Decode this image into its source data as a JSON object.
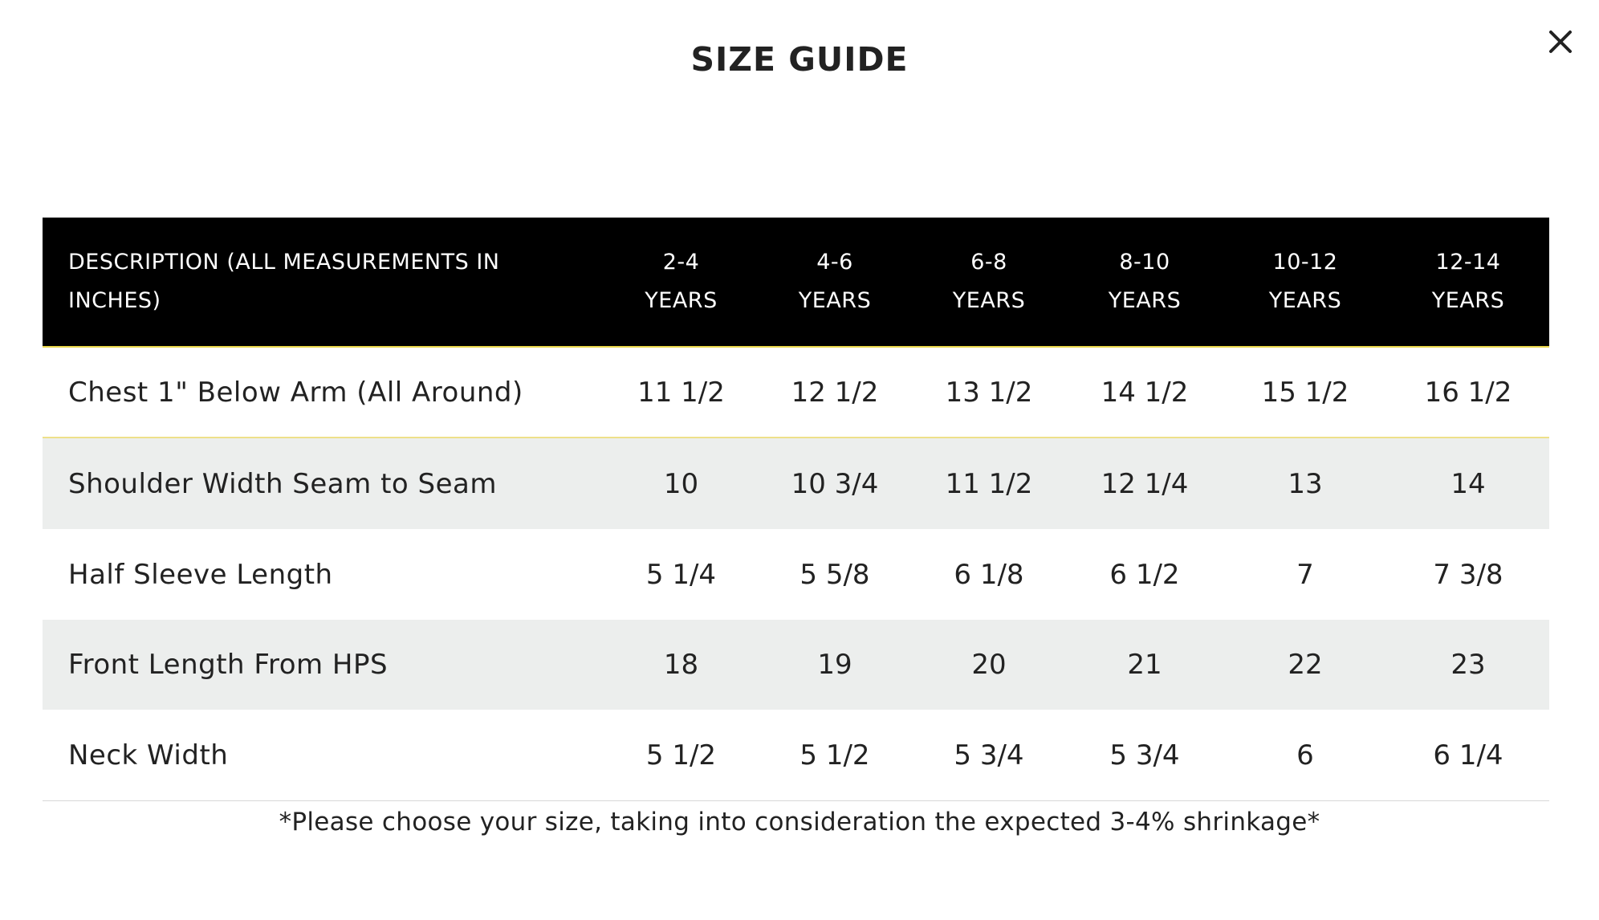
{
  "modal": {
    "title": "SIZE GUIDE",
    "close_icon": "close-icon"
  },
  "table": {
    "headers": [
      [
        "DESCRIPTION (ALL MEASUREMENTS IN",
        "INCHES)"
      ],
      [
        "2-4",
        "YEARS"
      ],
      [
        "4-6",
        "YEARS"
      ],
      [
        "6-8",
        "YEARS"
      ],
      [
        "8-10",
        "YEARS"
      ],
      [
        "10-12",
        "YEARS"
      ],
      [
        "12-14",
        "YEARS"
      ]
    ],
    "rows": [
      [
        "Chest 1\" Below Arm (All Around)",
        "11 1/2",
        "12 1/2",
        "13 1/2",
        "14 1/2",
        "15 1/2",
        "16 1/2"
      ],
      [
        "Shoulder Width Seam to Seam",
        "10",
        "10 3/4",
        "11 1/2",
        "12 1/4",
        "13",
        "14"
      ],
      [
        "Half Sleeve Length",
        "5 1/4",
        "5 5/8",
        "6 1/8",
        "6 1/2",
        "7",
        "7 3/8"
      ],
      [
        "Front Length From HPS",
        "18",
        "19",
        "20",
        "21",
        "22",
        "23"
      ],
      [
        "Neck Width",
        "5 1/2",
        "5 1/2",
        "5 3/4",
        "5 3/4",
        "6",
        "6 1/4"
      ]
    ]
  },
  "note": "*Please choose your size, taking into consideration the expected 3-4% shrinkage*",
  "colors": {
    "header_bg": "#000000",
    "header_text": "#ffffff",
    "accent_line": "#e8d64a",
    "stripe_bg": "#eceeed",
    "text": "#222222"
  }
}
